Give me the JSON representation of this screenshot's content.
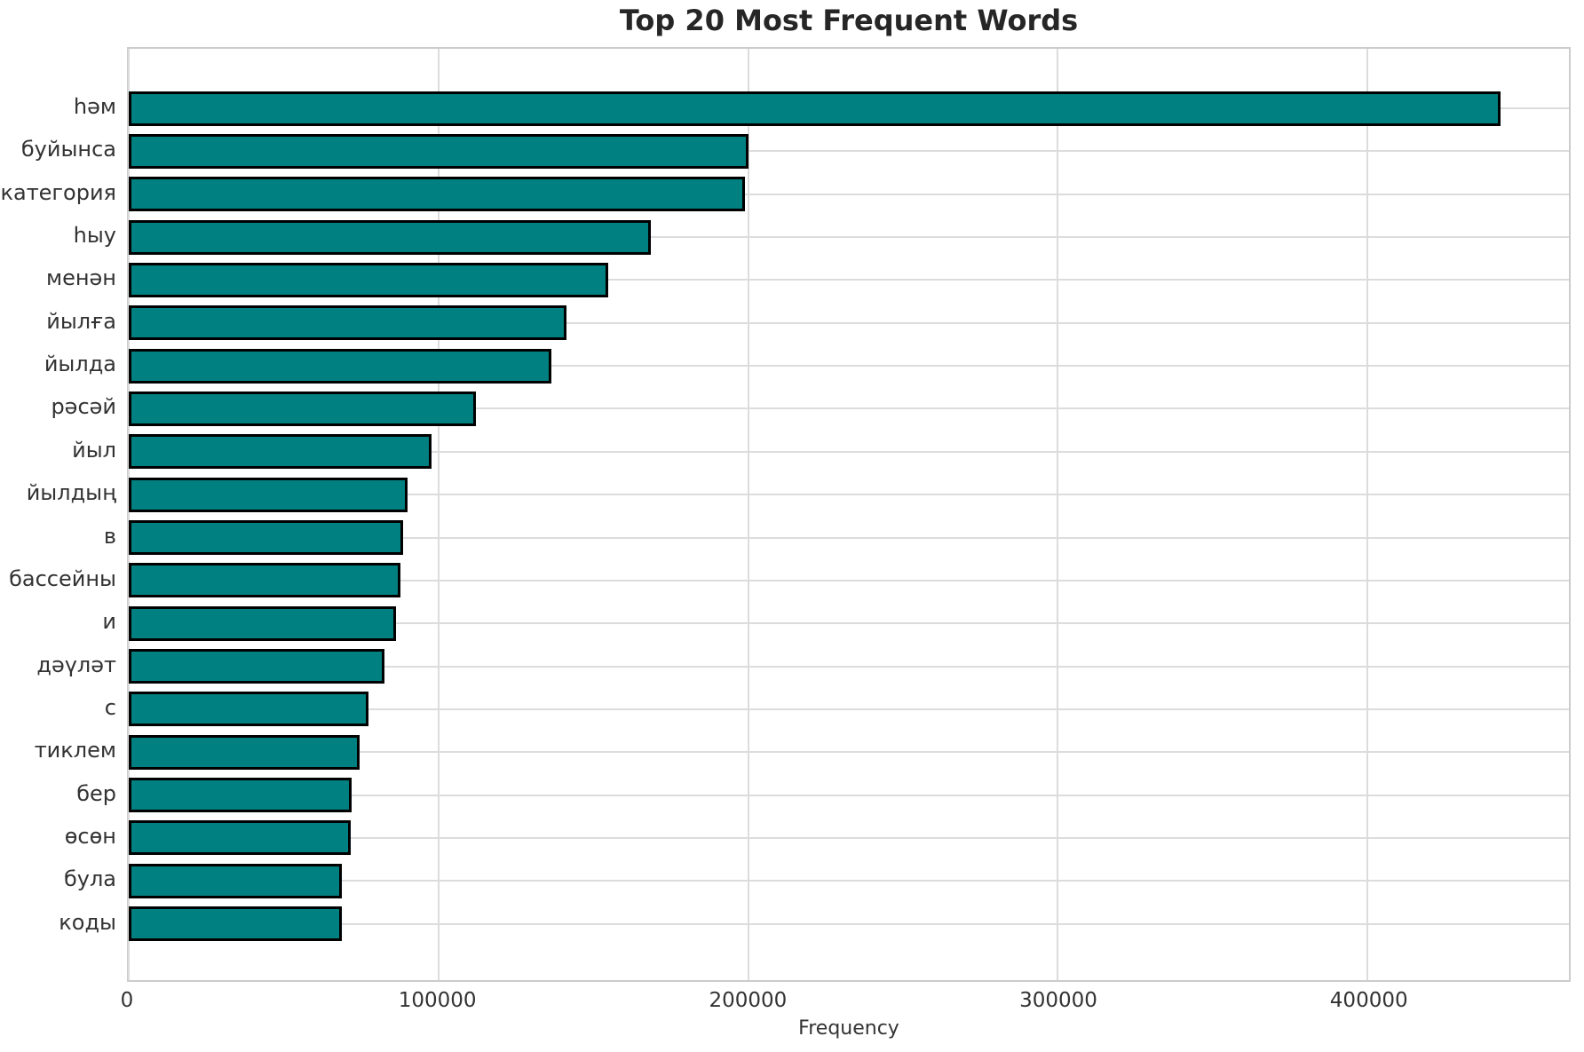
{
  "chart_data": {
    "type": "bar",
    "orientation": "horizontal",
    "title": "Top 20 Most Frequent Words",
    "xlabel": "Frequency",
    "ylabel": "",
    "categories": [
      "һәм",
      "буйынса",
      "категория",
      "һыу",
      "менән",
      "йылға",
      "йылда",
      "рәсәй",
      "йыл",
      "йылдың",
      "в",
      "бассейны",
      "и",
      "дәүләт",
      "с",
      "тиклем",
      "бер",
      "өсөн",
      "була",
      "коды"
    ],
    "values": [
      443000,
      200000,
      198900,
      168600,
      154900,
      141400,
      136600,
      112000,
      97700,
      90100,
      88600,
      87700,
      86300,
      82600,
      77500,
      74500,
      72000,
      71800,
      68900,
      68700
    ],
    "xlim": [
      0,
      465000
    ],
    "xticks": [
      0,
      100000,
      200000,
      300000,
      400000
    ],
    "xtick_labels": [
      "0",
      "100000",
      "200000",
      "300000",
      "400000"
    ],
    "grid": true,
    "legend": "none",
    "colors": {
      "bar_fill": "#008080",
      "bar_edge": "#000000",
      "grid": "#dcdcdc",
      "spine": "#cccccc",
      "tick_text": "#333333",
      "title_text": "#262626",
      "background": "#ffffff"
    }
  }
}
